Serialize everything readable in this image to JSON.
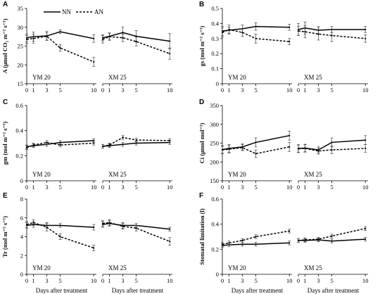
{
  "legend": [
    {
      "label": "NN",
      "style": "solid"
    },
    {
      "label": "AN",
      "style": "dashed"
    }
  ],
  "xlabel": "Days after treatment",
  "panels": [
    {
      "letter": "A",
      "ylabel": "A (μmol CO₂ m⁻² s⁻¹)"
    },
    {
      "letter": "B",
      "ylabel": "gs (mol m⁻² s⁻¹)"
    },
    {
      "letter": "C",
      "ylabel": "gm (mol m⁻² s⁻¹)"
    },
    {
      "letter": "D",
      "ylabel": "Ci (μmol mol⁻¹)"
    },
    {
      "letter": "E",
      "ylabel": "Tr (mol m⁻² s⁻¹)"
    },
    {
      "letter": "F",
      "ylabel": "Stomatal limitation (l)"
    }
  ],
  "chart_data": [
    {
      "type": "line",
      "panel": "A",
      "ylabel": "A (μmol CO₂ m⁻² s⁻¹)",
      "ylim": [
        15,
        35
      ],
      "yticks": [
        15,
        20,
        25,
        30,
        35
      ],
      "xticks": [
        0,
        1,
        3,
        5,
        10
      ],
      "subplots": [
        {
          "cultivar": "YM 20",
          "x": [
            0,
            1,
            3,
            5,
            10
          ],
          "series": [
            {
              "name": "NN",
              "values": [
                27.2,
                27.5,
                27.7,
                28.8,
                27.0
              ],
              "err": [
                1.0,
                1.2,
                1.2,
                0.5,
                1.0
              ]
            },
            {
              "name": "AN",
              "values": [
                26.8,
                27.0,
                27.6,
                24.5,
                20.8
              ],
              "err": [
                1.0,
                1.2,
                1.0,
                0.9,
                1.2
              ]
            }
          ]
        },
        {
          "cultivar": "XM 25",
          "x": [
            0,
            1,
            3,
            5,
            10
          ],
          "series": [
            {
              "name": "NN",
              "values": [
                27.2,
                27.6,
                28.6,
                27.6,
                26.3
              ],
              "err": [
                0.8,
                0.8,
                1.5,
                1.5,
                2.0
              ]
            },
            {
              "name": "AN",
              "values": [
                26.8,
                27.5,
                27.2,
                26.2,
                23.0
              ],
              "err": [
                1.0,
                1.0,
                1.0,
                1.2,
                1.5
              ]
            }
          ]
        }
      ]
    },
    {
      "type": "line",
      "panel": "B",
      "ylabel": "gs (mol m⁻² s⁻¹)",
      "ylim": [
        0,
        0.5
      ],
      "yticks": [
        0,
        0.1,
        0.2,
        0.3,
        0.4,
        0.5
      ],
      "xticks": [
        0,
        1,
        3,
        5,
        10
      ],
      "subplots": [
        {
          "cultivar": "YM 20",
          "x": [
            0,
            1,
            3,
            5,
            10
          ],
          "series": [
            {
              "name": "NN",
              "values": [
                0.35,
                0.355,
                0.365,
                0.38,
                0.375
              ],
              "err": [
                0.03,
                0.02,
                0.025,
                0.025,
                0.02
              ]
            },
            {
              "name": "AN",
              "values": [
                0.34,
                0.36,
                0.34,
                0.3,
                0.28
              ],
              "err": [
                0.03,
                0.03,
                0.025,
                0.03,
                0.02
              ]
            }
          ]
        },
        {
          "cultivar": "XM 25",
          "x": [
            0,
            1,
            3,
            5,
            10
          ],
          "series": [
            {
              "name": "NN",
              "values": [
                0.36,
                0.37,
                0.355,
                0.36,
                0.36
              ],
              "err": [
                0.04,
                0.04,
                0.025,
                0.02,
                0.02
              ]
            },
            {
              "name": "AN",
              "values": [
                0.35,
                0.345,
                0.33,
                0.32,
                0.3
              ],
              "err": [
                0.03,
                0.04,
                0.04,
                0.04,
                0.025
              ]
            }
          ]
        }
      ]
    },
    {
      "type": "line",
      "panel": "C",
      "ylabel": "gm (mol m⁻² s⁻¹)",
      "ylim": [
        0,
        0.6
      ],
      "yticks": [
        0,
        0.2,
        0.4,
        0.6
      ],
      "xticks": [
        0,
        1,
        3,
        5,
        10
      ],
      "subplots": [
        {
          "cultivar": "YM 20",
          "x": [
            0,
            1,
            3,
            5,
            10
          ],
          "series": [
            {
              "name": "NN",
              "values": [
                0.27,
                0.28,
                0.29,
                0.305,
                0.32
              ],
              "err": [
                0.015,
                0.015,
                0.015,
                0.015,
                0.015
              ]
            },
            {
              "name": "AN",
              "values": [
                0.265,
                0.285,
                0.305,
                0.285,
                0.3
              ],
              "err": [
                0.015,
                0.015,
                0.015,
                0.015,
                0.015
              ]
            }
          ]
        },
        {
          "cultivar": "XM 25",
          "x": [
            0,
            1,
            3,
            5,
            10
          ],
          "series": [
            {
              "name": "NN",
              "values": [
                0.275,
                0.28,
                0.29,
                0.3,
                0.305
              ],
              "err": [
                0.015,
                0.015,
                0.015,
                0.015,
                0.015
              ]
            },
            {
              "name": "AN",
              "values": [
                0.275,
                0.285,
                0.345,
                0.325,
                0.32
              ],
              "err": [
                0.015,
                0.015,
                0.015,
                0.015,
                0.015
              ]
            }
          ]
        }
      ]
    },
    {
      "type": "line",
      "panel": "D",
      "ylabel": "Ci (μmol mol⁻¹)",
      "ylim": [
        150,
        350
      ],
      "yticks": [
        150,
        200,
        250,
        300,
        350
      ],
      "xticks": [
        0,
        1,
        3,
        5,
        10
      ],
      "subplots": [
        {
          "cultivar": "YM 20",
          "x": [
            0,
            1,
            3,
            5,
            10
          ],
          "series": [
            {
              "name": "NN",
              "values": [
                233,
                236,
                240,
                252,
                270
              ],
              "err": [
                10,
                10,
                8,
                12,
                12
              ]
            },
            {
              "name": "AN",
              "values": [
                232,
                234,
                238,
                222,
                240
              ],
              "err": [
                10,
                10,
                8,
                10,
                12
              ]
            }
          ]
        },
        {
          "cultivar": "XM 25",
          "x": [
            0,
            1,
            3,
            5,
            10
          ],
          "series": [
            {
              "name": "NN",
              "values": [
                236,
                237,
                232,
                252,
                258
              ],
              "err": [
                10,
                10,
                8,
                12,
                12
              ]
            },
            {
              "name": "AN",
              "values": [
                235,
                236,
                229,
                232,
                236
              ],
              "err": [
                10,
                10,
                8,
                10,
                10
              ]
            }
          ]
        }
      ]
    },
    {
      "type": "line",
      "panel": "E",
      "ylabel": "Tr (mol m⁻² s⁻¹)",
      "ylim": [
        0,
        8
      ],
      "yticks": [
        0,
        2,
        4,
        6,
        8
      ],
      "xticks": [
        0,
        1,
        3,
        5,
        10
      ],
      "subplots": [
        {
          "cultivar": "YM 20",
          "x": [
            0,
            1,
            3,
            5,
            10
          ],
          "series": [
            {
              "name": "NN",
              "values": [
                5.2,
                5.3,
                5.2,
                5.2,
                5.0
              ],
              "err": [
                0.3,
                0.3,
                0.3,
                0.2,
                0.3
              ]
            },
            {
              "name": "AN",
              "values": [
                5.3,
                5.5,
                5.0,
                4.0,
                2.8
              ],
              "err": [
                0.3,
                0.3,
                0.4,
                0.3,
                0.3
              ]
            }
          ]
        },
        {
          "cultivar": "XM 25",
          "x": [
            0,
            1,
            3,
            5,
            10
          ],
          "series": [
            {
              "name": "NN",
              "values": [
                5.3,
                5.4,
                5.2,
                5.2,
                4.8
              ],
              "err": [
                0.3,
                0.3,
                0.3,
                0.2,
                0.2
              ]
            },
            {
              "name": "AN",
              "values": [
                5.4,
                5.5,
                5.1,
                4.9,
                3.5
              ],
              "err": [
                0.3,
                0.3,
                0.3,
                0.3,
                0.4
              ]
            }
          ]
        }
      ]
    },
    {
      "type": "line",
      "panel": "F",
      "ylabel": "Stomatal limitation (l)",
      "ylim": [
        0,
        0.6
      ],
      "yticks": [
        0,
        0.2,
        0.4,
        0.6
      ],
      "xticks": [
        0,
        1,
        3,
        5,
        10
      ],
      "subplots": [
        {
          "cultivar": "YM 20",
          "x": [
            0,
            1,
            3,
            5,
            10
          ],
          "series": [
            {
              "name": "NN",
              "values": [
                0.23,
                0.235,
                0.24,
                0.24,
                0.25
              ],
              "err": [
                0.015,
                0.015,
                0.015,
                0.015,
                0.015
              ]
            },
            {
              "name": "AN",
              "values": [
                0.24,
                0.25,
                0.27,
                0.3,
                0.345
              ],
              "err": [
                0.015,
                0.015,
                0.015,
                0.015,
                0.015
              ]
            }
          ]
        },
        {
          "cultivar": "XM 25",
          "x": [
            0,
            1,
            3,
            5,
            10
          ],
          "series": [
            {
              "name": "NN",
              "values": [
                0.27,
                0.27,
                0.275,
                0.265,
                0.28
              ],
              "err": [
                0.015,
                0.015,
                0.015,
                0.015,
                0.015
              ]
            },
            {
              "name": "AN",
              "values": [
                0.27,
                0.275,
                0.28,
                0.305,
                0.365
              ],
              "err": [
                0.015,
                0.015,
                0.015,
                0.015,
                0.015
              ]
            }
          ]
        }
      ]
    }
  ]
}
